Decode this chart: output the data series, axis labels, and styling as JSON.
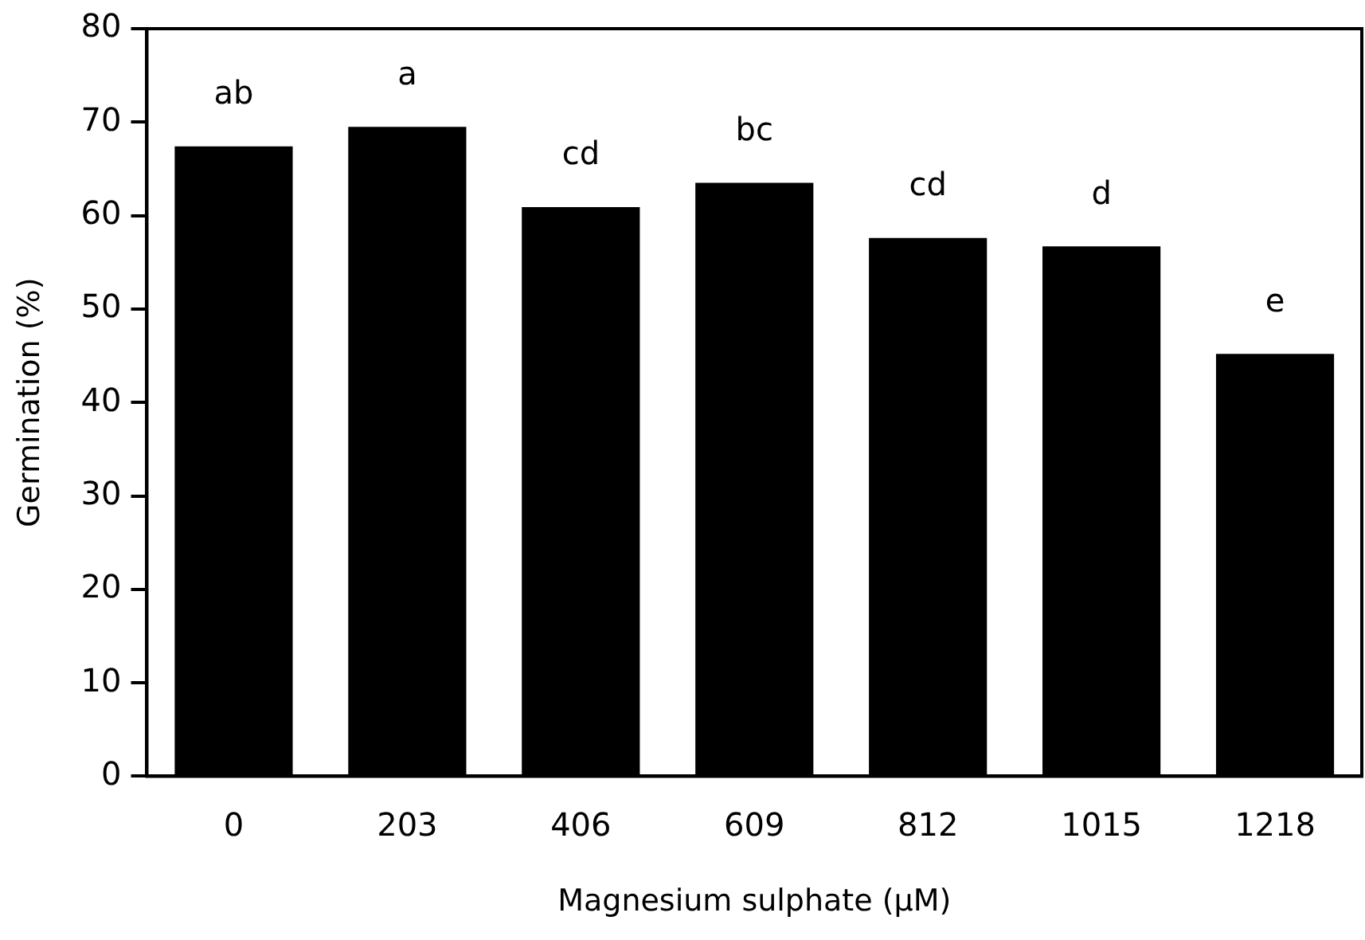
{
  "chart_data": {
    "type": "bar",
    "categories": [
      "0",
      "203",
      "406",
      "609",
      "812",
      "1015",
      "1218"
    ],
    "values": [
      67.4,
      69.5,
      60.9,
      63.5,
      57.6,
      56.7,
      45.2
    ],
    "color": "#000000",
    "xlabel": "Magnesium sulphate (μM)",
    "ylabel": "Germination (%)",
    "ylim": [
      0,
      80
    ],
    "yticks": [
      0,
      10,
      20,
      30,
      40,
      50,
      60,
      70,
      80
    ],
    "grid": false,
    "legend": false,
    "annotations": [
      {
        "text": "ab",
        "x": "0",
        "y": 67.4
      },
      {
        "text": "a",
        "x": "203",
        "y": 69.5
      },
      {
        "text": "cd",
        "x": "406",
        "y": 60.9
      },
      {
        "text": "bc",
        "x": "609",
        "y": 63.5
      },
      {
        "text": "cd",
        "x": "812",
        "y": 57.6
      },
      {
        "text": "d",
        "x": "1015",
        "y": 56.7
      },
      {
        "text": "e",
        "x": "1218",
        "y": 45.2
      }
    ]
  }
}
